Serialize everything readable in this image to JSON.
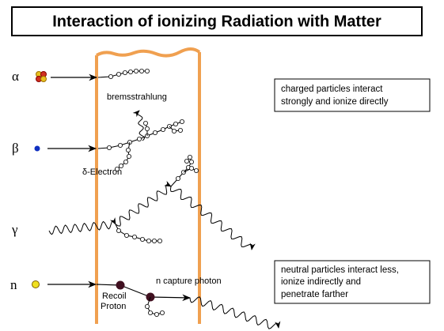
{
  "title": "Interaction of ionizing Radiation with Matter",
  "particles": [
    "α",
    "β",
    "γ",
    "n"
  ],
  "annotations": {
    "bremsstrahlung": "bremsstrahlung",
    "delta_electron": "δ-Electron",
    "capture_photon": "n capture photon",
    "recoil_proton": [
      "Recoil",
      "Proton"
    ]
  },
  "notes": {
    "charged": [
      "charged particles interact",
      "strongly and ionize directly"
    ],
    "neutral": [
      "neutral particles interact less,",
      "ionize indirectly and",
      "penetrate farther"
    ]
  }
}
